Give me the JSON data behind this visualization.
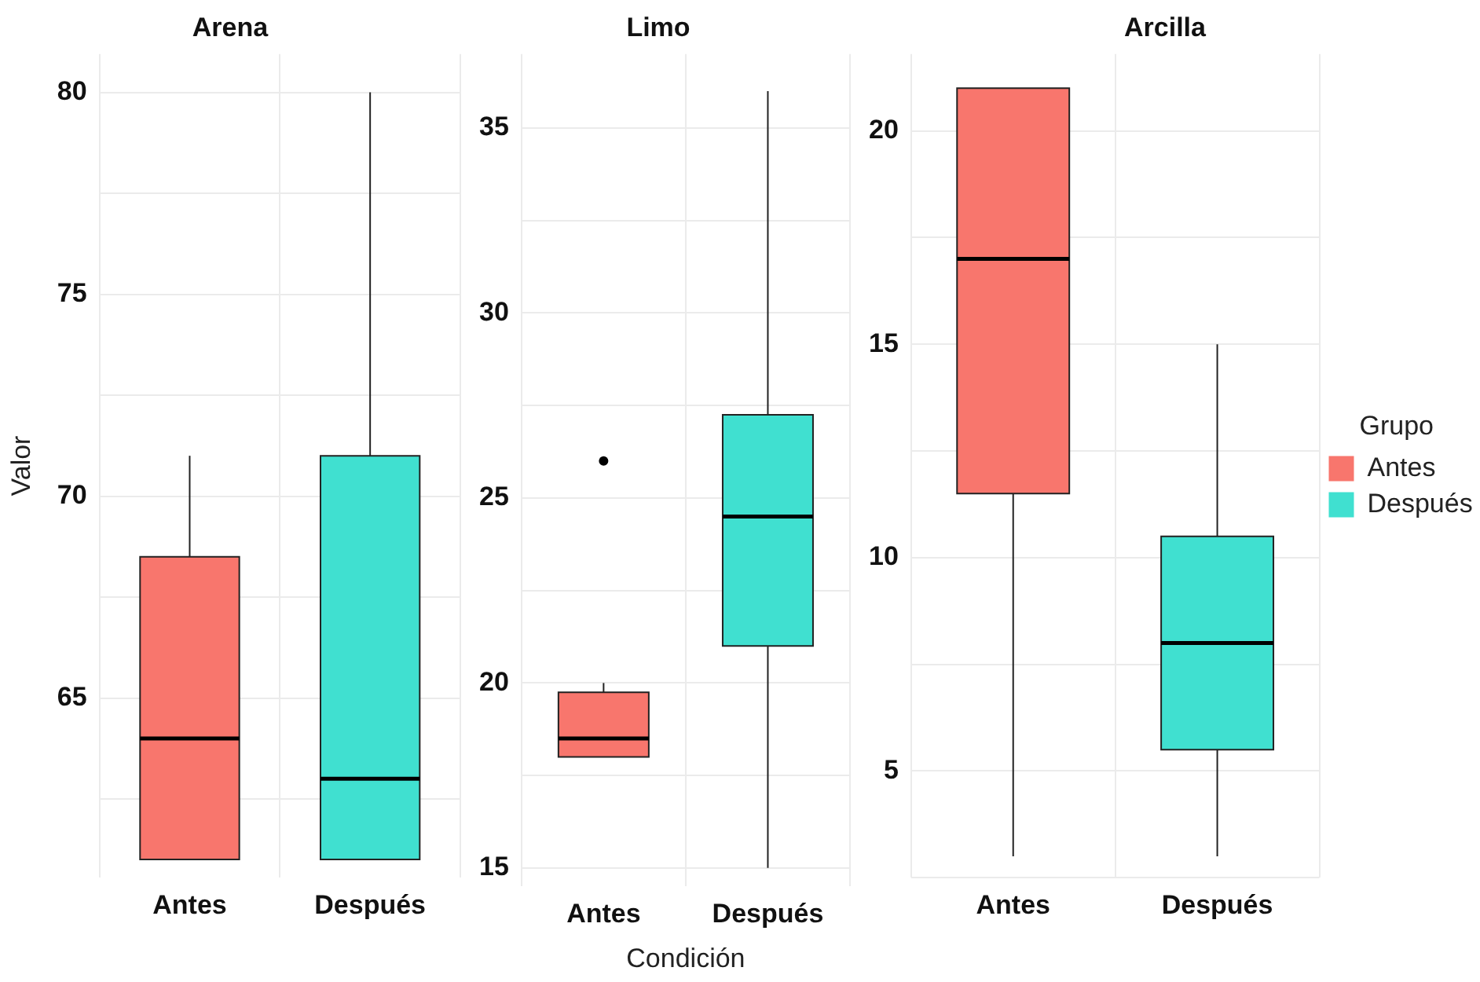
{
  "chart_data": [
    {
      "type": "box",
      "title": "Arena",
      "ylabel": "Valor",
      "categories": [
        "Antes",
        "Después"
      ],
      "ylim": [
        60.55,
        80.95
      ],
      "yticks": [
        {
          "value": 62.5,
          "label": null
        },
        65,
        {
          "value": 67.5,
          "label": null
        },
        70,
        {
          "value": 72.5,
          "label": null
        },
        75,
        {
          "value": 77.5,
          "label": null
        },
        80
      ],
      "grid": true,
      "series": [
        {
          "color": "#f8766d",
          "boxes": [
            {
              "low": 61,
              "q1": 61,
              "median": 64,
              "q3": 68.5,
              "high": 71
            },
            null
          ]
        },
        {
          "color": "#40e0d0",
          "boxes": [
            null,
            {
              "low": 61,
              "q1": 61,
              "median": 63,
              "q3": 71,
              "high": 80
            }
          ]
        }
      ]
    },
    {
      "type": "box",
      "title": "Limo",
      "xlabel": "Condición",
      "categories": [
        "Antes",
        "Después"
      ],
      "ylim": [
        14.5,
        37
      ],
      "yticks": [
        15,
        {
          "value": 17.5,
          "label": null
        },
        20,
        {
          "value": 22.5,
          "label": null
        },
        25,
        {
          "value": 27.5,
          "label": null
        },
        30,
        {
          "value": 32.5,
          "label": null
        },
        35
      ],
      "grid": true,
      "series": [
        {
          "color": "#f8766d",
          "boxes": [
            {
              "low": 18,
              "q1": 18,
              "median": 18.5,
              "q3": 19.75,
              "high": 20,
              "outliers": [
                26
              ]
            },
            null
          ]
        },
        {
          "color": "#40e0d0",
          "boxes": [
            null,
            {
              "low": 15,
              "q1": 21,
              "median": 24.5,
              "q3": 27.25,
              "high": 36
            }
          ]
        }
      ]
    },
    {
      "type": "box",
      "title": "Arcilla",
      "categories": [
        "Antes",
        "Después"
      ],
      "ylim": [
        2.5,
        21.8
      ],
      "yticks": [
        {
          "value": 2.5,
          "label": null
        },
        5,
        {
          "value": 7.5,
          "label": null
        },
        10,
        {
          "value": 12.5,
          "label": null
        },
        15,
        {
          "value": 17.5,
          "label": null
        },
        20
      ],
      "grid": true,
      "legend": "right",
      "legend_title": "Grupo",
      "series": [
        {
          "name": "Antes",
          "color": "#f8766d",
          "boxes": [
            {
              "low": 3,
              "q1": 11.5,
              "median": 17,
              "q3": 21,
              "high": 21
            },
            null
          ]
        },
        {
          "name": "Después",
          "color": "#40e0d0",
          "boxes": [
            null,
            {
              "low": 3,
              "q1": 5.5,
              "median": 8,
              "q3": 10.5,
              "high": 15
            }
          ]
        }
      ]
    }
  ]
}
